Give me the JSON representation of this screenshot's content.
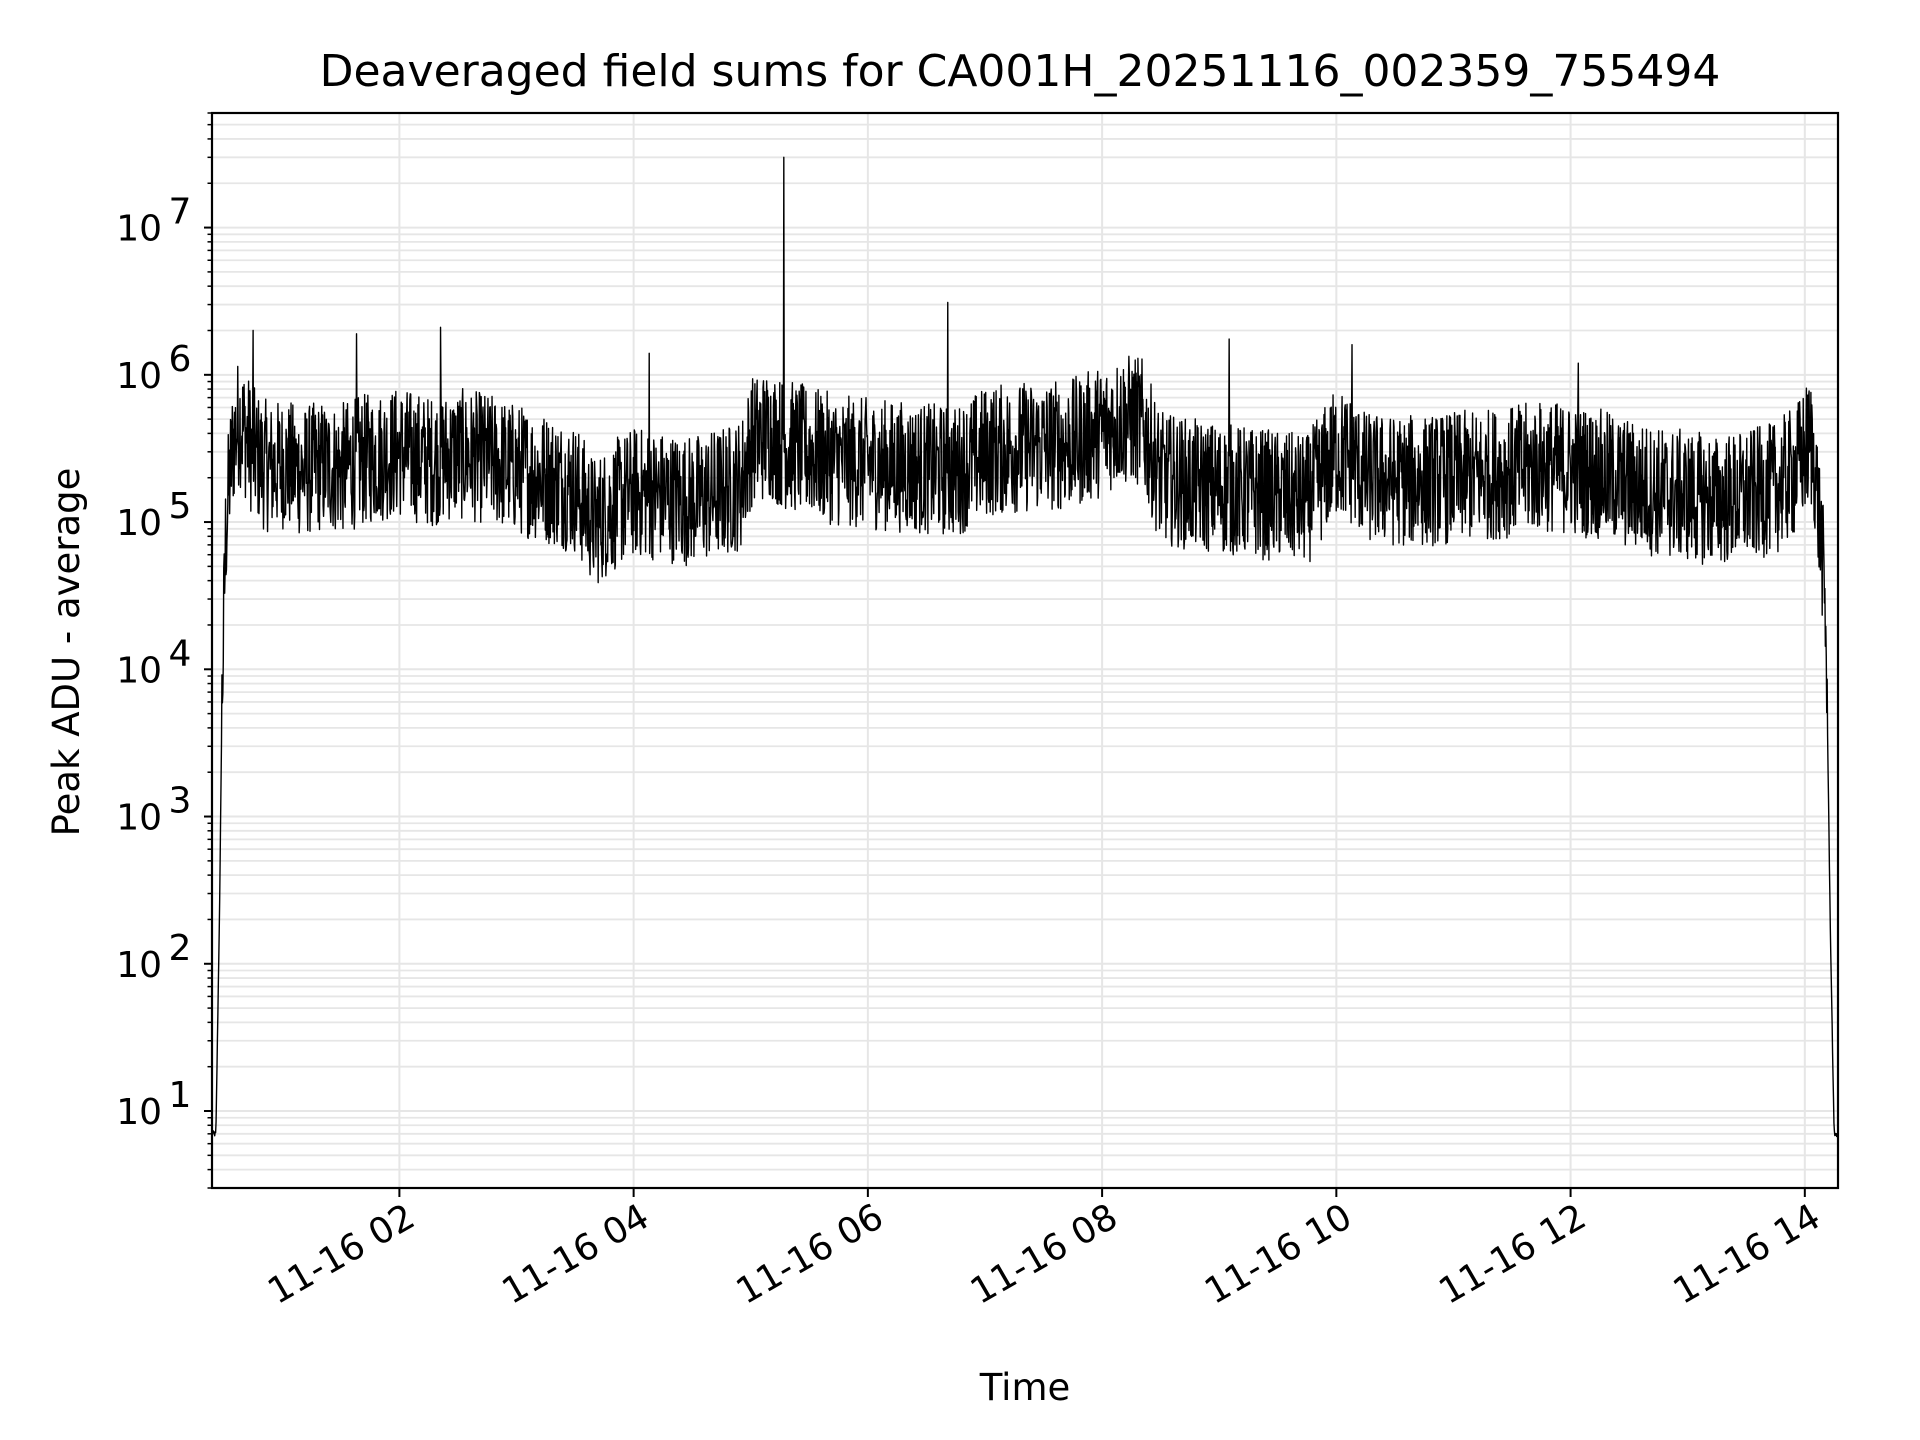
{
  "chart_data": {
    "type": "line",
    "title": "Deaveraged field sums for CA001H_20251116_002359_755494",
    "xlabel": "Time",
    "ylabel": "Peak ADU - average",
    "yscale": "log",
    "ylim": [
      3,
      60000000
    ],
    "xlim": [
      "2025-11-16T00:24",
      "2025-11-16T14:17"
    ],
    "grid": true,
    "line_color": "#000000",
    "x_tick_labels": [
      "11-16 02",
      "11-16 04",
      "11-16 06",
      "11-16 08",
      "11-16 10",
      "11-16 12",
      "11-16 14"
    ],
    "y_tick_labels": [
      {
        "base": "10",
        "exp": "1"
      },
      {
        "base": "10",
        "exp": "2"
      },
      {
        "base": "10",
        "exp": "3"
      },
      {
        "base": "10",
        "exp": "4"
      },
      {
        "base": "10",
        "exp": "5"
      },
      {
        "base": "10",
        "exp": "6"
      },
      {
        "base": "10",
        "exp": "7"
      }
    ],
    "series": [
      {
        "x": [
          "2025-11-16T00:24",
          "2025-11-16T00:26",
          "2025-11-16T00:28",
          "2025-11-16T00:29",
          "2025-11-16T00:31",
          "2025-11-16T00:33",
          "2025-11-16T00:35",
          "2025-11-16T00:38",
          "2025-11-16T00:41",
          "2025-11-16T00:45",
          "2025-11-16T00:50",
          "2025-11-16T00:55",
          "2025-11-16T01:00",
          "2025-11-16T01:10",
          "2025-11-16T01:20",
          "2025-11-16T01:30",
          "2025-11-16T01:40",
          "2025-11-16T01:50",
          "2025-11-16T02:00",
          "2025-11-16T02:15",
          "2025-11-16T02:30",
          "2025-11-16T02:45",
          "2025-11-16T03:00",
          "2025-11-16T03:15",
          "2025-11-16T03:30",
          "2025-11-16T03:40",
          "2025-11-16T03:50",
          "2025-11-16T04:00",
          "2025-11-16T04:15",
          "2025-11-16T04:30",
          "2025-11-16T04:45",
          "2025-11-16T04:55",
          "2025-11-16T05:00",
          "2025-11-16T05:10",
          "2025-11-16T05:15",
          "2025-11-16T05:20",
          "2025-11-16T05:30",
          "2025-11-16T05:45",
          "2025-11-16T06:00",
          "2025-11-16T06:15",
          "2025-11-16T06:30",
          "2025-11-16T06:45",
          "2025-11-16T07:00",
          "2025-11-16T07:15",
          "2025-11-16T07:30",
          "2025-11-16T07:45",
          "2025-11-16T08:00",
          "2025-11-16T08:10",
          "2025-11-16T08:20",
          "2025-11-16T08:30",
          "2025-11-16T08:45",
          "2025-11-16T09:00",
          "2025-11-16T09:15",
          "2025-11-16T09:30",
          "2025-11-16T09:45",
          "2025-11-16T10:00",
          "2025-11-16T10:10",
          "2025-11-16T10:15",
          "2025-11-16T10:30",
          "2025-11-16T10:45",
          "2025-11-16T11:00",
          "2025-11-16T11:15",
          "2025-11-16T11:30",
          "2025-11-16T11:45",
          "2025-11-16T12:00",
          "2025-11-16T12:15",
          "2025-11-16T12:30",
          "2025-11-16T12:45",
          "2025-11-16T13:00",
          "2025-11-16T13:15",
          "2025-11-16T13:30",
          "2025-11-16T13:45",
          "2025-11-16T13:55",
          "2025-11-16T14:00",
          "2025-11-16T14:03",
          "2025-11-16T14:05",
          "2025-11-16T14:07",
          "2025-11-16T14:09",
          "2025-11-16T14:11",
          "2025-11-16T14:13",
          "2025-11-16T14:15",
          "2025-11-16T14:17"
        ],
        "y": [
          7,
          7,
          300,
          5000,
          80000,
          200000,
          350000,
          500000,
          400000,
          300000,
          250000,
          230000,
          250000,
          220000,
          240000,
          230000,
          260000,
          280000,
          300000,
          260000,
          290000,
          270000,
          230000,
          200000,
          170000,
          100000,
          130000,
          160000,
          150000,
          140000,
          160000,
          180000,
          350000,
          400000,
          350000,
          330000,
          300000,
          260000,
          250000,
          240000,
          230000,
          220000,
          300000,
          320000,
          330000,
          340000,
          420000,
          500000,
          480000,
          200000,
          180000,
          170000,
          160000,
          150000,
          140000,
          300000,
          250000,
          200000,
          190000,
          190000,
          200000,
          210000,
          220000,
          240000,
          230000,
          210000,
          180000,
          160000,
          150000,
          140000,
          150000,
          170000,
          220000,
          300000,
          350000,
          250000,
          120000,
          60000,
          15000,
          200,
          7,
          7
        ],
        "spikes": [
          {
            "x": "2025-11-16T00:45",
            "y": 2000000
          },
          {
            "x": "2025-11-16T01:38",
            "y": 1900000
          },
          {
            "x": "2025-11-16T02:21",
            "y": 2100000
          },
          {
            "x": "2025-11-16T04:08",
            "y": 1400000
          },
          {
            "x": "2025-11-16T05:17",
            "y": 30000000
          },
          {
            "x": "2025-11-16T06:41",
            "y": 3100000
          },
          {
            "x": "2025-11-16T09:05",
            "y": 1750000
          },
          {
            "x": "2025-11-16T10:08",
            "y": 1600000
          },
          {
            "x": "2025-11-16T12:04",
            "y": 1200000
          }
        ]
      }
    ]
  }
}
